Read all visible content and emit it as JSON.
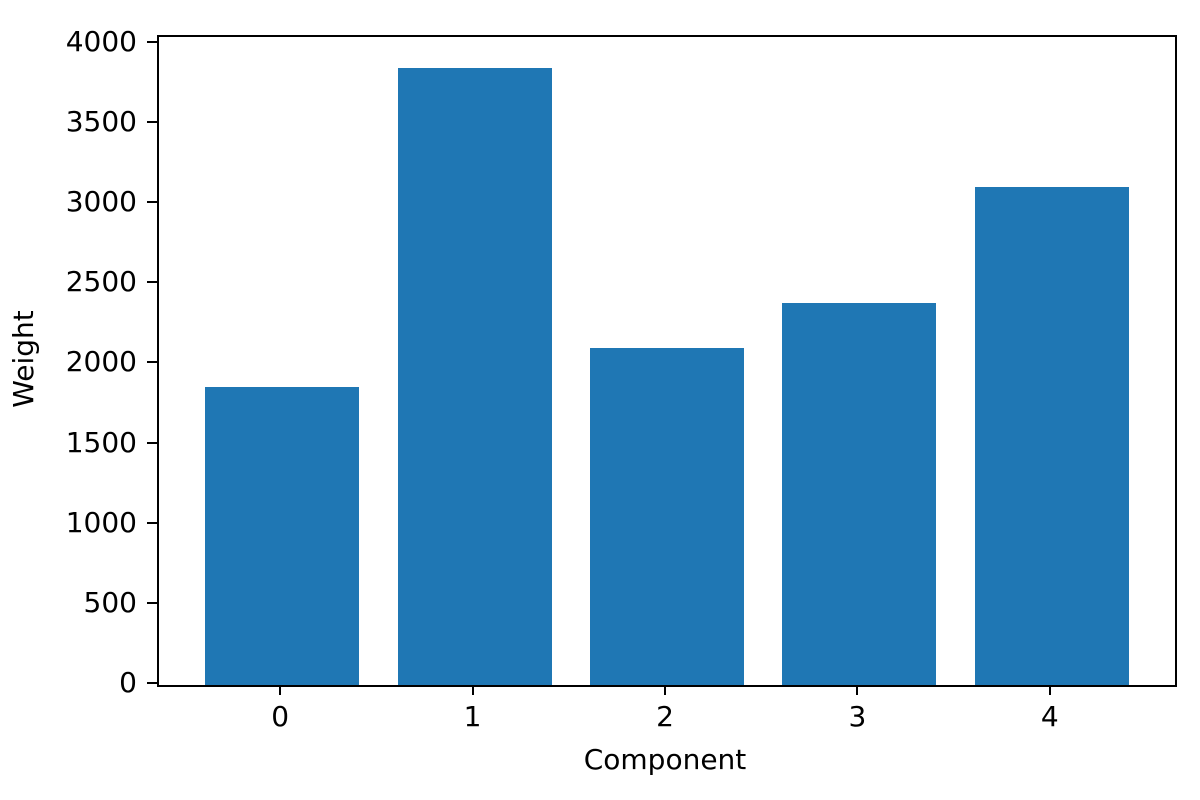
{
  "chart_data": {
    "type": "bar",
    "categories": [
      "0",
      "1",
      "2",
      "3",
      "4"
    ],
    "values": [
      1860,
      3850,
      2100,
      2385,
      3110
    ],
    "title": "",
    "xlabel": "Component",
    "ylabel": "Weight",
    "ylim": [
      0,
      4043
    ],
    "xlim": [
      -0.64,
      4.64
    ],
    "yticks": [
      0,
      500,
      1000,
      1500,
      2000,
      2500,
      3000,
      3500,
      4000
    ],
    "bar_width_data_units": 0.8,
    "bar_color": "#1f77b4",
    "axis_color": "#000000",
    "background_color": "#ffffff",
    "grid": false,
    "legend": "none"
  }
}
